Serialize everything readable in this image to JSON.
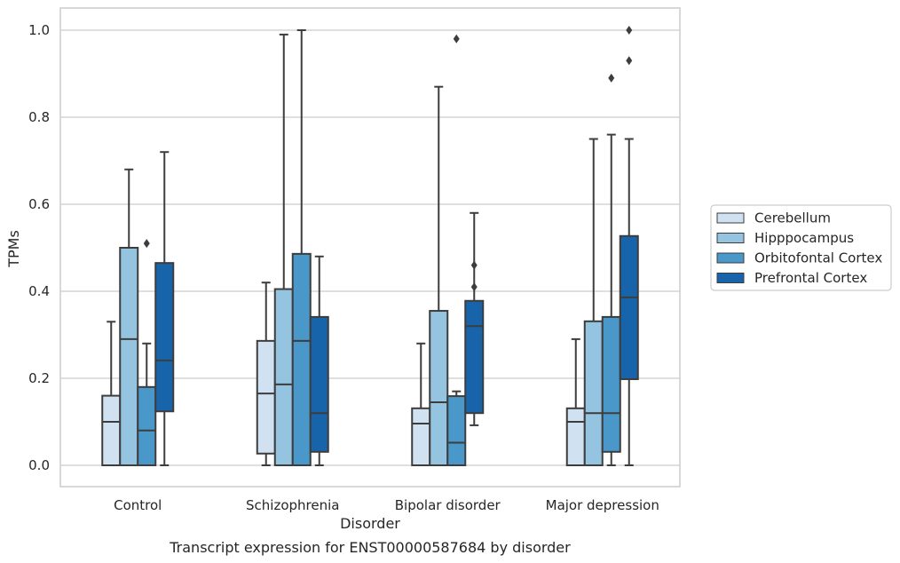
{
  "chart_data": {
    "type": "boxplot",
    "xlabel": "Disorder",
    "ylabel": "TPMs",
    "caption": "Transcript expression for ENST00000587684 by disorder",
    "categories": [
      "Control",
      "Schizophrenia",
      "Bipolar disorder",
      "Major depression"
    ],
    "ylim": [
      -0.048,
      1.05
    ],
    "yticks": [
      0.0,
      0.2,
      0.4,
      0.6,
      0.8,
      1.0
    ],
    "ytick_labels": [
      "0.0",
      "0.2",
      "0.4",
      "0.6",
      "0.8",
      "1.0"
    ],
    "grid": "horizontal",
    "legend_position": "right",
    "series": [
      {
        "name": "Cerebellum",
        "color": "#d0e1f2",
        "boxes": [
          {
            "whislo": 0.0,
            "q1": 0.0,
            "med": 0.1,
            "q3": 0.16,
            "whishi": 0.33,
            "fliers": []
          },
          {
            "whislo": 0.0,
            "q1": 0.027,
            "med": 0.165,
            "q3": 0.286,
            "whishi": 0.42,
            "fliers": []
          },
          {
            "whislo": 0.0,
            "q1": 0.0,
            "med": 0.096,
            "q3": 0.131,
            "whishi": 0.28,
            "fliers": []
          },
          {
            "whislo": 0.0,
            "q1": 0.0,
            "med": 0.1,
            "q3": 0.131,
            "whishi": 0.29,
            "fliers": []
          }
        ]
      },
      {
        "name": "Hipppocampus",
        "color": "#94c4df",
        "boxes": [
          {
            "whislo": 0.0,
            "q1": 0.0,
            "med": 0.29,
            "q3": 0.5,
            "whishi": 0.68,
            "fliers": []
          },
          {
            "whislo": 0.0,
            "q1": 0.0,
            "med": 0.186,
            "q3": 0.405,
            "whishi": 0.99,
            "fliers": []
          },
          {
            "whislo": 0.0,
            "q1": 0.0,
            "med": 0.145,
            "q3": 0.355,
            "whishi": 0.87,
            "fliers": []
          },
          {
            "whislo": 0.0,
            "q1": 0.0,
            "med": 0.12,
            "q3": 0.331,
            "whishi": 0.75,
            "fliers": []
          }
        ]
      },
      {
        "name": "Orbitofontal Cortex",
        "color": "#4a98c9",
        "boxes": [
          {
            "whislo": 0.0,
            "q1": 0.0,
            "med": 0.08,
            "q3": 0.18,
            "whishi": 0.28,
            "fliers": [
              0.51
            ]
          },
          {
            "whislo": 0.0,
            "q1": 0.0,
            "med": 0.286,
            "q3": 0.486,
            "whishi": 1.0,
            "fliers": []
          },
          {
            "whislo": 0.0,
            "q1": 0.0,
            "med": 0.052,
            "q3": 0.159,
            "whishi": 0.17,
            "fliers": [
              0.98
            ]
          },
          {
            "whislo": 0.0,
            "q1": 0.031,
            "med": 0.12,
            "q3": 0.341,
            "whishi": 0.76,
            "fliers": [
              0.89
            ]
          }
        ]
      },
      {
        "name": "Prefrontal Cortex",
        "color": "#1764ab",
        "boxes": [
          {
            "whislo": 0.0,
            "q1": 0.124,
            "med": 0.241,
            "q3": 0.465,
            "whishi": 0.72,
            "fliers": []
          },
          {
            "whislo": 0.0,
            "q1": 0.031,
            "med": 0.12,
            "q3": 0.341,
            "whishi": 0.48,
            "fliers": []
          },
          {
            "whislo": 0.092,
            "q1": 0.12,
            "med": 0.32,
            "q3": 0.378,
            "whishi": 0.58,
            "fliers": [
              0.41,
              0.46
            ]
          },
          {
            "whislo": 0.0,
            "q1": 0.198,
            "med": 0.386,
            "q3": 0.527,
            "whishi": 0.75,
            "fliers": [
              0.93,
              1.0
            ]
          }
        ]
      }
    ]
  }
}
